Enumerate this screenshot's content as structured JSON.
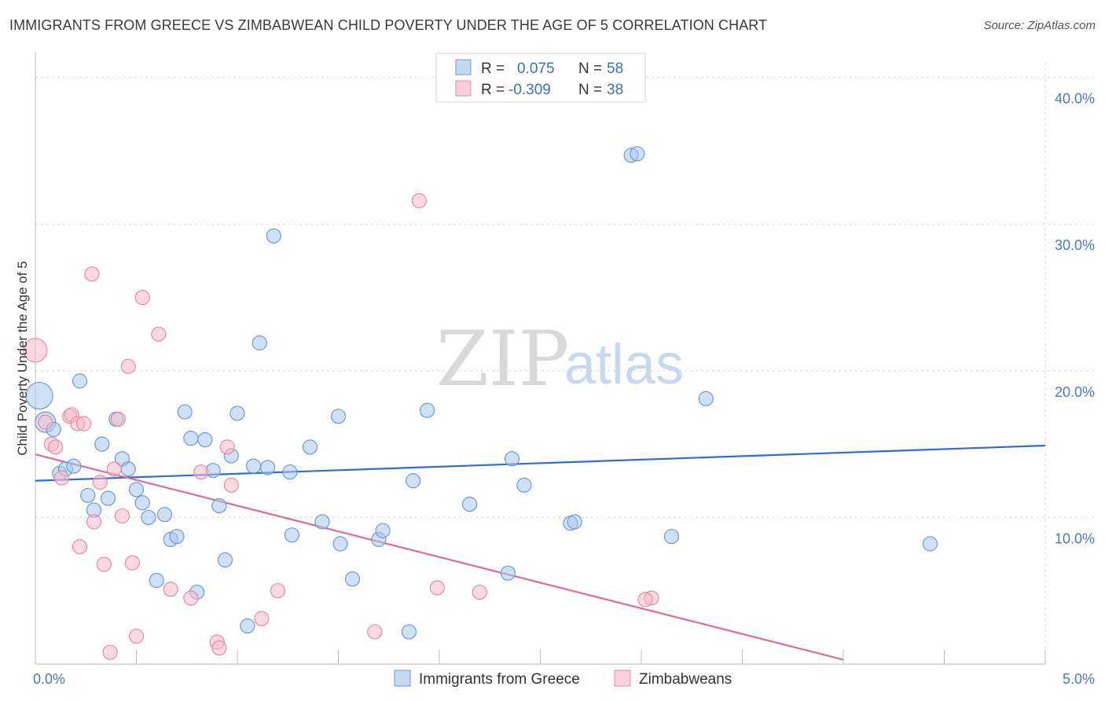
{
  "title": "IMMIGRANTS FROM GREECE VS ZIMBABWEAN CHILD POVERTY UNDER THE AGE OF 5 CORRELATION CHART",
  "source": "Source: ZipAtlas.com",
  "watermark": {
    "zip": "ZIP",
    "atlas": "atlas"
  },
  "legend": {
    "rows": [
      {
        "r_label": "R =",
        "r_value": "0.075",
        "n_label": "N =",
        "n_value": "58"
      },
      {
        "r_label": "R =",
        "r_value": "-0.309",
        "n_label": "N =",
        "n_value": "38"
      }
    ]
  },
  "colors": {
    "greece_fill": "#a9c6ec",
    "greece_stroke": "#6b9bd6",
    "greece_line": "#2d6fce",
    "zim_fill": "#f5b9cb",
    "zim_stroke": "#e88aa7",
    "zim_line": "#e06b95",
    "tick_text": "#4a78c2",
    "grid": "#d8d8d8"
  },
  "chart_data": {
    "type": "scatter",
    "title": "IMMIGRANTS FROM GREECE VS ZIMBABWEAN CHILD POVERTY UNDER THE AGE OF 5 CORRELATION CHART",
    "xlabel": "",
    "ylabel": "Child Poverty Under the Age of 5",
    "xlim": [
      0,
      5
    ],
    "ylim": [
      0,
      41
    ],
    "x_tick_labels": [
      {
        "value": 0,
        "label": "0.0%"
      },
      {
        "value": 5,
        "label": "5.0%"
      }
    ],
    "y_tick_labels": [
      {
        "value": 10,
        "label": "10.0%"
      },
      {
        "value": 20,
        "label": "20.0%"
      },
      {
        "value": 30,
        "label": "30.0%"
      },
      {
        "value": 40,
        "label": "40.0%"
      }
    ],
    "grid": true,
    "legend_position": "top-center",
    "series": [
      {
        "name": "Immigrants from Greece",
        "color": "#a9c6ec",
        "points": [
          [
            0.02,
            18.3
          ],
          [
            0.05,
            16.5
          ],
          [
            0.09,
            16.0
          ],
          [
            0.12,
            13.0
          ],
          [
            0.15,
            13.3
          ],
          [
            0.19,
            13.5
          ],
          [
            0.22,
            19.3
          ],
          [
            0.26,
            11.5
          ],
          [
            0.29,
            10.5
          ],
          [
            0.33,
            15.0
          ],
          [
            0.36,
            11.3
          ],
          [
            0.4,
            16.7
          ],
          [
            0.43,
            14.0
          ],
          [
            0.46,
            13.3
          ],
          [
            0.5,
            11.9
          ],
          [
            0.53,
            11.0
          ],
          [
            0.56,
            10.0
          ],
          [
            0.6,
            5.7
          ],
          [
            0.64,
            10.2
          ],
          [
            0.67,
            8.5
          ],
          [
            0.7,
            8.7
          ],
          [
            0.74,
            17.2
          ],
          [
            0.77,
            15.4
          ],
          [
            0.8,
            4.9
          ],
          [
            0.84,
            15.3
          ],
          [
            0.88,
            13.2
          ],
          [
            0.91,
            10.8
          ],
          [
            0.94,
            7.1
          ],
          [
            0.97,
            14.2
          ],
          [
            1.0,
            17.1
          ],
          [
            1.05,
            2.6
          ],
          [
            1.08,
            13.5
          ],
          [
            1.11,
            21.9
          ],
          [
            1.15,
            13.4
          ],
          [
            1.18,
            29.2
          ],
          [
            1.26,
            13.1
          ],
          [
            1.27,
            8.8
          ],
          [
            1.36,
            14.8
          ],
          [
            1.42,
            9.7
          ],
          [
            1.5,
            16.9
          ],
          [
            1.51,
            8.2
          ],
          [
            1.57,
            5.8
          ],
          [
            1.7,
            8.5
          ],
          [
            1.72,
            9.1
          ],
          [
            1.85,
            2.2
          ],
          [
            1.87,
            12.5
          ],
          [
            1.94,
            17.3
          ],
          [
            2.15,
            10.9
          ],
          [
            2.34,
            6.2
          ],
          [
            2.36,
            14.0
          ],
          [
            2.42,
            12.2
          ],
          [
            2.65,
            9.6
          ],
          [
            2.67,
            9.7
          ],
          [
            2.95,
            34.7
          ],
          [
            2.98,
            34.8
          ],
          [
            3.15,
            8.7
          ],
          [
            3.32,
            18.1
          ],
          [
            4.43,
            8.2
          ]
        ]
      },
      {
        "name": "Zimbabweans",
        "color": "#f5b9cb",
        "points": [
          [
            0.0,
            21.4
          ],
          [
            0.05,
            16.5
          ],
          [
            0.08,
            15.0
          ],
          [
            0.1,
            14.8
          ],
          [
            0.13,
            12.7
          ],
          [
            0.17,
            16.9
          ],
          [
            0.18,
            17.0
          ],
          [
            0.21,
            16.4
          ],
          [
            0.22,
            8.0
          ],
          [
            0.24,
            16.4
          ],
          [
            0.28,
            26.6
          ],
          [
            0.29,
            9.7
          ],
          [
            0.32,
            12.4
          ],
          [
            0.34,
            6.8
          ],
          [
            0.37,
            0.8
          ],
          [
            0.39,
            13.3
          ],
          [
            0.41,
            16.7
          ],
          [
            0.43,
            10.1
          ],
          [
            0.46,
            20.3
          ],
          [
            0.48,
            6.9
          ],
          [
            0.5,
            1.9
          ],
          [
            0.53,
            25.0
          ],
          [
            0.61,
            22.5
          ],
          [
            0.67,
            5.1
          ],
          [
            0.77,
            4.5
          ],
          [
            0.82,
            13.1
          ],
          [
            0.9,
            1.5
          ],
          [
            0.91,
            1.1
          ],
          [
            0.95,
            14.8
          ],
          [
            0.97,
            12.2
          ],
          [
            1.12,
            3.1
          ],
          [
            1.2,
            5.0
          ],
          [
            1.68,
            2.2
          ],
          [
            1.9,
            31.6
          ],
          [
            1.99,
            5.2
          ],
          [
            2.2,
            4.9
          ],
          [
            3.05,
            4.5
          ],
          [
            3.02,
            4.4
          ]
        ]
      }
    ],
    "trendlines": [
      {
        "series": "Immigrants from Greece",
        "x": [
          0.0,
          5.0
        ],
        "y": [
          12.5,
          14.9
        ]
      },
      {
        "series": "Zimbabweans",
        "x": [
          0.0,
          4.0
        ],
        "y": [
          14.3,
          0.3
        ]
      }
    ]
  }
}
